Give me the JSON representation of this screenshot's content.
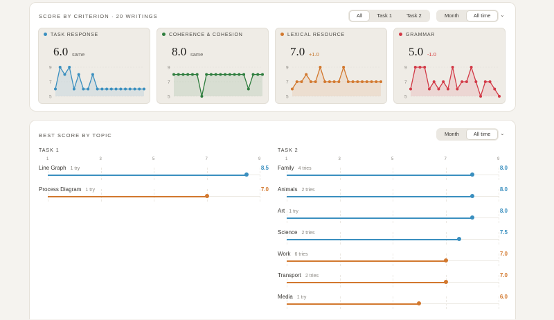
{
  "colors": {
    "blue": "#3a8fbf",
    "green": "#2e7d3e",
    "orange": "#d2782e",
    "red": "#d23a47"
  },
  "criterion": {
    "title": "SCORE BY CRITERION · 20 WRITINGS",
    "task_filter": [
      "All",
      "Task 1",
      "Task 2"
    ],
    "task_filter_active": 0,
    "range_filter": [
      "Month",
      "All time"
    ],
    "range_filter_active": 1,
    "cards": [
      {
        "label": "TASK RESPONSE",
        "color": "#3a8fbf",
        "score": "6.0",
        "delta": "same",
        "trend": "flat",
        "values": [
          6,
          9,
          8,
          9,
          6,
          8,
          6,
          6,
          8,
          6,
          6,
          6,
          6,
          6,
          6,
          6,
          6,
          6,
          6,
          6
        ]
      },
      {
        "label": "COHERENCE & COHESION",
        "color": "#2e7d3e",
        "score": "8.0",
        "delta": "same",
        "trend": "flat",
        "values": [
          8,
          8,
          8,
          8,
          8,
          8,
          5,
          8,
          8,
          8,
          8,
          8,
          8,
          8,
          8,
          8,
          6,
          8,
          8,
          8
        ]
      },
      {
        "label": "LEXICAL RESOURCE",
        "color": "#d2782e",
        "score": "7.0",
        "delta": "+1.0",
        "trend": "up",
        "values": [
          6,
          7,
          7,
          8,
          7,
          7,
          9,
          7,
          7,
          7,
          7,
          9,
          7,
          7,
          7,
          7,
          7,
          7,
          7,
          7
        ]
      },
      {
        "label": "GRAMMAR",
        "color": "#d23a47",
        "score": "5.0",
        "delta": "-1.0",
        "trend": "down",
        "values": [
          6,
          9,
          9,
          9,
          6,
          7,
          6,
          7,
          6,
          9,
          6,
          7,
          7,
          9,
          7,
          5,
          7,
          7,
          6,
          5
        ]
      }
    ],
    "ticks": [
      "9",
      "7",
      "5"
    ]
  },
  "topics": {
    "title": "BEST SCORE BY TOPIC",
    "range_filter": [
      "Month",
      "All time"
    ],
    "range_filter_active": 1,
    "scale": [
      "1",
      "3",
      "5",
      "7",
      "9"
    ],
    "task1": {
      "title": "TASK 1",
      "rows": [
        {
          "name": "Line Graph",
          "tries": "1 try",
          "value": "8.5",
          "score": 8.5,
          "color": "#3a8fbf"
        },
        {
          "name": "Process Diagram",
          "tries": "1 try",
          "value": "7.0",
          "score": 7.0,
          "color": "#d2782e"
        }
      ]
    },
    "task2": {
      "title": "TASK 2",
      "rows": [
        {
          "name": "Family",
          "tries": "4 tries",
          "value": "8.0",
          "score": 8.0,
          "color": "#3a8fbf"
        },
        {
          "name": "Animals",
          "tries": "2 tries",
          "value": "8.0",
          "score": 8.0,
          "color": "#3a8fbf"
        },
        {
          "name": "Art",
          "tries": "1 try",
          "value": "8.0",
          "score": 8.0,
          "color": "#3a8fbf"
        },
        {
          "name": "Science",
          "tries": "2 tries",
          "value": "7.5",
          "score": 7.5,
          "color": "#3a8fbf"
        },
        {
          "name": "Work",
          "tries": "6 tries",
          "value": "7.0",
          "score": 7.0,
          "color": "#d2782e"
        },
        {
          "name": "Transport",
          "tries": "2 tries",
          "value": "7.0",
          "score": 7.0,
          "color": "#d2782e"
        },
        {
          "name": "Media",
          "tries": "1 try",
          "value": "6.0",
          "score": 6.0,
          "color": "#d2782e"
        }
      ]
    }
  }
}
